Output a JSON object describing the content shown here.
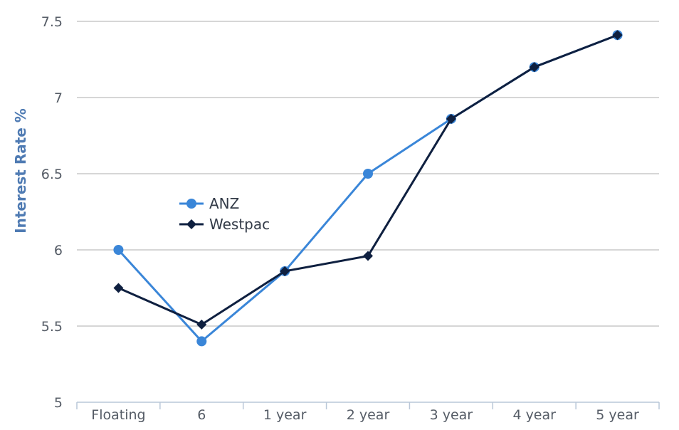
{
  "chart_data": {
    "type": "line",
    "title": "",
    "xlabel": "",
    "ylabel": "Interest Rate %",
    "categories": [
      "Floating",
      "6",
      "1 year",
      "2 year",
      "3 year",
      "4 year",
      "5 year"
    ],
    "ylim": [
      5,
      7.5
    ],
    "yticks": [
      "5",
      "5.5",
      "6",
      "6.5",
      "7",
      "7.5"
    ],
    "grid": true,
    "legend_position": "middle-left",
    "series": [
      {
        "name": "ANZ",
        "color": "#3a86d8",
        "marker": "circle",
        "values": [
          6.0,
          5.4,
          5.86,
          6.5,
          6.86,
          7.2,
          7.41
        ]
      },
      {
        "name": "Westpac",
        "color": "#0f2040",
        "marker": "diamond",
        "values": [
          5.75,
          5.51,
          5.86,
          5.96,
          6.86,
          7.2,
          7.41
        ]
      }
    ]
  }
}
